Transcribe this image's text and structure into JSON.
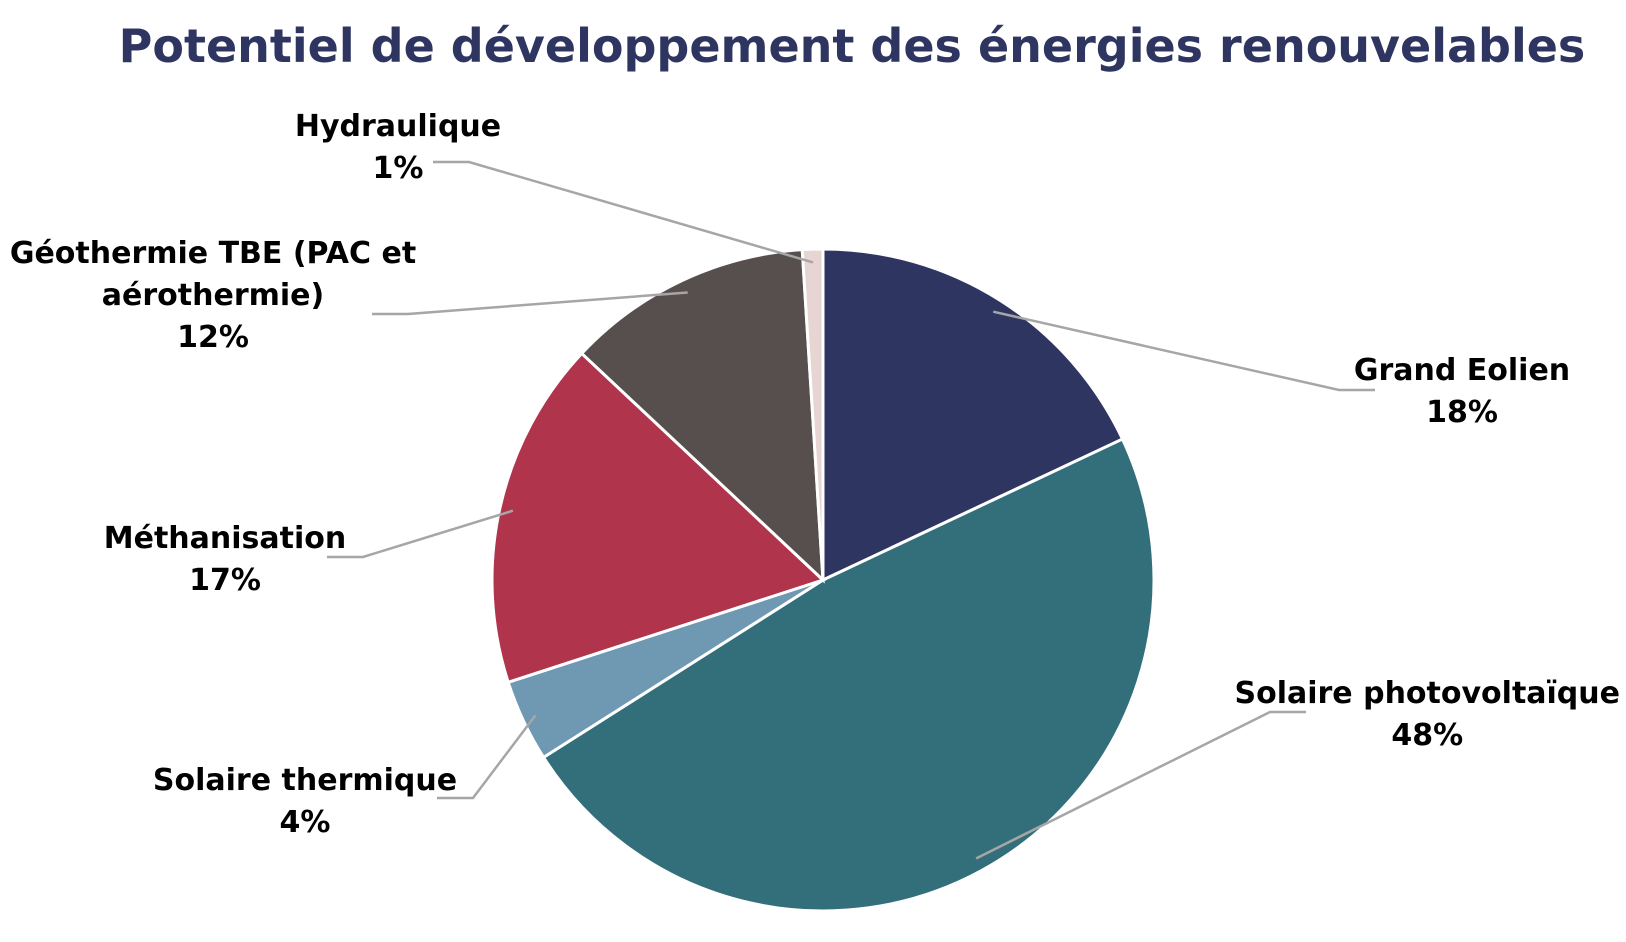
{
  "chart_data": {
    "type": "pie",
    "title": "Potentiel de développement des énergies renouvelables",
    "slices": [
      {
        "label_lines": [
          "Grand Eolien"
        ],
        "value": 18,
        "display": "18%",
        "color": "#2f3561"
      },
      {
        "label_lines": [
          "Solaire photovoltaïque"
        ],
        "value": 48,
        "display": "48%",
        "color": "#336e7b"
      },
      {
        "label_lines": [
          "Solaire thermique"
        ],
        "value": 4,
        "display": "4%",
        "color": "#6f98b2"
      },
      {
        "label_lines": [
          "Méthanisation"
        ],
        "value": 17,
        "display": "17%",
        "color": "#b0344c"
      },
      {
        "label_lines": [
          "Géothermie TBE (PAC et",
          "aérothermie)"
        ],
        "value": 12,
        "display": "12%",
        "color": "#574e4e"
      },
      {
        "label_lines": [
          "Hydraulique"
        ],
        "value": 1,
        "display": "1%",
        "color": "#e6d5d2"
      }
    ],
    "legend": "none",
    "data_labels": "outside with leader lines"
  }
}
